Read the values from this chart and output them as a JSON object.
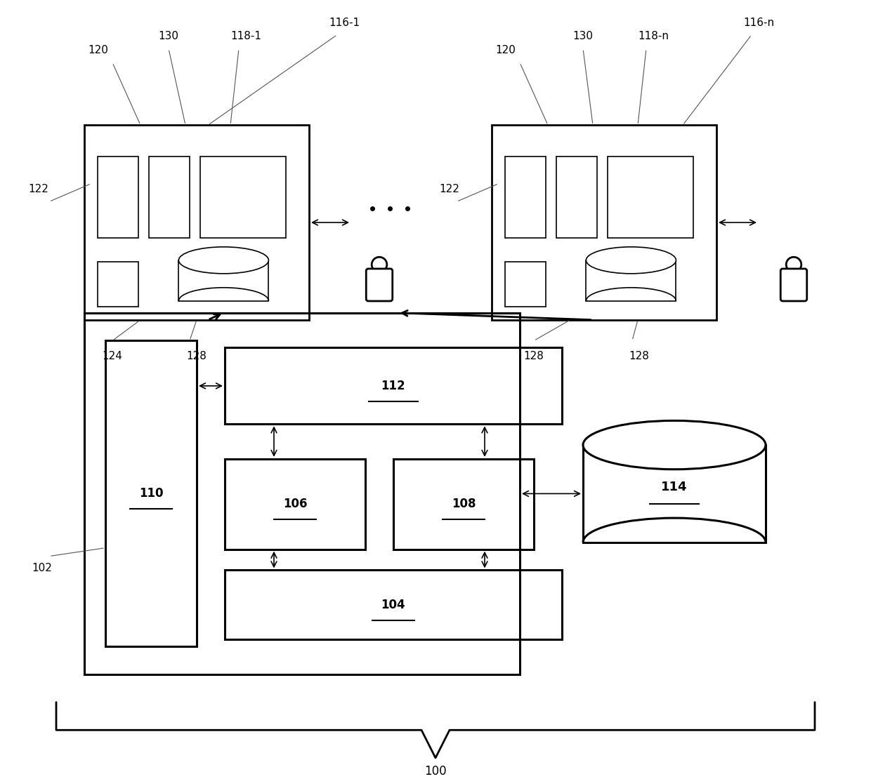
{
  "bg_color": "#ffffff",
  "line_color": "#000000",
  "label_color": "#555555",
  "fig_width": 12.4,
  "fig_height": 11.1,
  "labels": {
    "130_left": "130",
    "120_left": "120",
    "118_1": "118-1",
    "116_1": "116-1",
    "122_left": "122",
    "124": "124",
    "128_left1": "128",
    "130_right": "130",
    "120_right": "120",
    "118_n": "118-n",
    "116_n": "116-n",
    "122_right": "122",
    "128_right1": "128",
    "128_right2": "128",
    "102": "102",
    "110": "110",
    "112": "112",
    "106": "106",
    "108": "108",
    "104": "104",
    "114": "114",
    "100": "100"
  }
}
